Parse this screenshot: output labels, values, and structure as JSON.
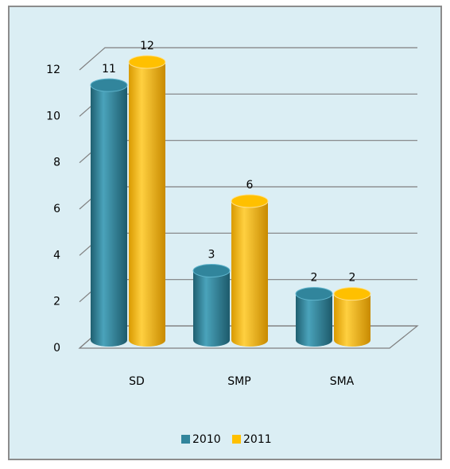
{
  "chart_data": {
    "type": "bar",
    "categories": [
      "SD",
      "SMP",
      "SMA"
    ],
    "series": [
      {
        "name": "2010",
        "color": "#31859c",
        "values": [
          11,
          3,
          2
        ]
      },
      {
        "name": "2011",
        "color": "#ffc000",
        "values": [
          12,
          6,
          2
        ]
      }
    ],
    "ylim": [
      0,
      12
    ],
    "yticks": [
      0,
      2,
      4,
      6,
      8,
      10,
      12
    ],
    "grid": true,
    "legend": "bottom"
  }
}
